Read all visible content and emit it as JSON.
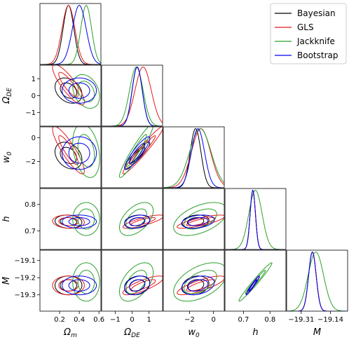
{
  "chart_data": {
    "type": "corner",
    "parameters": [
      {
        "key": "Om",
        "label": "Ω",
        "sub": "m",
        "range": [
          0.0,
          0.62
        ],
        "ticks": [
          "0.2",
          "0.4",
          "0.6"
        ],
        "tick_values": [
          0.2,
          0.4,
          0.6
        ]
      },
      {
        "key": "ODE",
        "label": "Ω",
        "sub": "DE",
        "range": [
          -1.8,
          1.8
        ],
        "ticks": [
          "−1",
          "0",
          "1"
        ],
        "tick_values": [
          -1,
          0,
          1
        ]
      },
      {
        "key": "w0",
        "label": "w",
        "sub": "0",
        "range": [
          -4.2,
          0.9
        ],
        "ticks": [
          "−2",
          "0"
        ],
        "tick_values": [
          -2,
          0
        ]
      },
      {
        "key": "h",
        "label": "h",
        "sub": "",
        "range": [
          0.63,
          0.86
        ],
        "ticks": [
          "0.7",
          "0.8"
        ],
        "tick_values": [
          0.7,
          0.8
        ]
      },
      {
        "key": "M",
        "label": "M",
        "sub": "",
        "range": [
          -19.395,
          -19.04
        ],
        "ticks": [
          "−19.31",
          "−19.14"
        ],
        "tick_values": [
          -19.31,
          -19.14
        ],
        "y_ticks": [
          "−19.1",
          "−19.2",
          "−19.3"
        ],
        "y_tick_values": [
          -19.1,
          -19.2,
          -19.3
        ]
      }
    ],
    "legend": {
      "position": "top-right",
      "entries": [
        "Bayesian",
        "GLS",
        "Jackknife",
        "Bootstrap"
      ]
    },
    "series": [
      {
        "name": "Bayesian",
        "color": "#000000",
        "mean": [
          0.29,
          0.3,
          -1.5,
          0.735,
          -19.245
        ],
        "sigma": [
          0.055,
          0.3,
          0.45,
          0.01,
          0.022
        ],
        "corr": {
          "0-1": -0.3,
          "0-2": -0.3,
          "0-3": -0.1,
          "0-4": 0.0,
          "1-2": 0.92,
          "1-3": 0.2,
          "1-4": 0.2,
          "2-3": 0.2,
          "2-4": 0.2,
          "3-4": 0.97
        }
      },
      {
        "name": "GLS",
        "color": "#e41a1c",
        "mean": [
          0.29,
          0.65,
          -1.05,
          0.735,
          -19.245
        ],
        "sigma": [
          0.065,
          0.48,
          0.8,
          0.01,
          0.022
        ],
        "corr": {
          "0-1": -0.85,
          "0-2": -0.88,
          "0-3": -0.1,
          "0-4": 0.0,
          "1-2": 0.97,
          "1-3": 0.8,
          "1-4": 0.8,
          "2-3": 0.8,
          "2-4": 0.8,
          "3-4": 0.98
        }
      },
      {
        "name": "Jackknife",
        "color": "#2ca02c",
        "mean": [
          0.47,
          0.25,
          -1.1,
          0.745,
          -19.225
        ],
        "sigma": [
          0.055,
          0.4,
          0.9,
          0.025,
          0.045
        ],
        "corr": {
          "0-1": -0.3,
          "0-2": -0.3,
          "0-3": 0.0,
          "0-4": 0.0,
          "1-2": 0.95,
          "1-3": 0.5,
          "1-4": 0.5,
          "2-3": 0.5,
          "2-4": 0.5,
          "3-4": 0.98
        }
      },
      {
        "name": "Bootstrap",
        "color": "#0000ee",
        "mean": [
          0.4,
          0.3,
          -1.3,
          0.735,
          -19.245
        ],
        "sigma": [
          0.07,
          0.3,
          0.55,
          0.01,
          0.022
        ],
        "corr": {
          "0-1": 0.0,
          "0-2": 0.0,
          "0-3": 0.0,
          "0-4": 0.0,
          "1-2": 0.9,
          "1-3": 0.3,
          "1-4": 0.3,
          "2-3": 0.3,
          "2-4": 0.3,
          "3-4": 0.97
        }
      }
    ]
  }
}
